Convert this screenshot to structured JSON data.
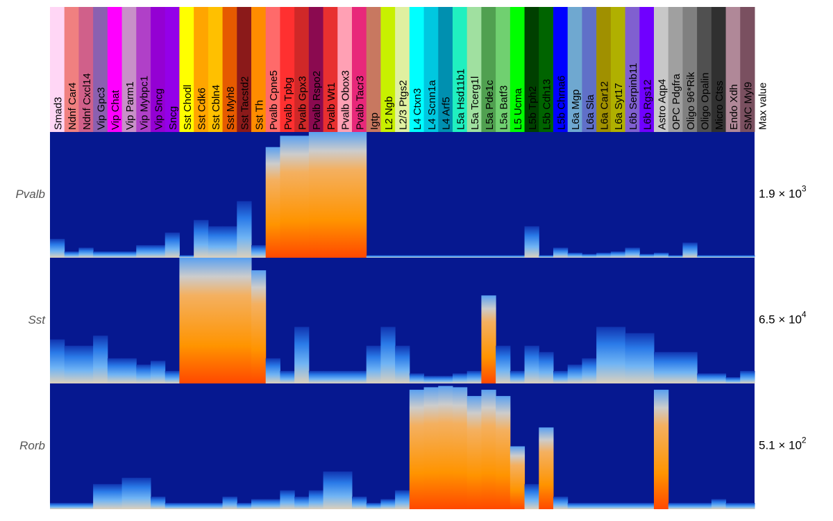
{
  "chart_data": {
    "type": "heatmap",
    "max_value_header": "Max value",
    "columns": [
      {
        "name": "Smad3",
        "color": "#ffd6f5"
      },
      {
        "name": "Ndnf Car4",
        "color": "#f08080"
      },
      {
        "name": "Ndnf Cxcl14",
        "color": "#d0608a"
      },
      {
        "name": "Vip Gpc3",
        "color": "#8b60b0"
      },
      {
        "name": "Vip Chat",
        "color": "#ff00ff"
      },
      {
        "name": "Vip Parm1",
        "color": "#c890c8"
      },
      {
        "name": "Vip Mybpc1",
        "color": "#b040c8"
      },
      {
        "name": "Vip Sncg",
        "color": "#9400d3"
      },
      {
        "name": "Sncg",
        "color": "#9400e8"
      },
      {
        "name": "Sst Chodl",
        "color": "#ffff00"
      },
      {
        "name": "Sst Cdk6",
        "color": "#ffa500"
      },
      {
        "name": "Sst Cbln4",
        "color": "#ffc000"
      },
      {
        "name": "Sst Myh8",
        "color": "#e65a00"
      },
      {
        "name": "Sst Tacstd2",
        "color": "#8b1a1a"
      },
      {
        "name": "Sst Th",
        "color": "#ff8c00"
      },
      {
        "name": "Pvalb Cpne5",
        "color": "#ff6a6a"
      },
      {
        "name": "Pvalb Tpbg",
        "color": "#ff3030"
      },
      {
        "name": "Pvalb Gpx3",
        "color": "#d02828"
      },
      {
        "name": "Pvalb Rspo2",
        "color": "#8b0a50"
      },
      {
        "name": "Pvalb Wt1",
        "color": "#e83030"
      },
      {
        "name": "Pvalb Obox3",
        "color": "#ffa0b4"
      },
      {
        "name": "Pvalb Tacr3",
        "color": "#e8287a"
      },
      {
        "name": "Igtp",
        "color": "#c87860"
      },
      {
        "name": "L2 Ngb",
        "color": "#c8f000"
      },
      {
        "name": "L2/3 Ptgs2",
        "color": "#e0f0a0"
      },
      {
        "name": "L4 Ctxn3",
        "color": "#00ffff"
      },
      {
        "name": "L4 Scnn1a",
        "color": "#00c8e0"
      },
      {
        "name": "L4 Arf5",
        "color": "#0090b0"
      },
      {
        "name": "L5a Hsd11b1",
        "color": "#20f0c0"
      },
      {
        "name": "L5a Tcerg1l",
        "color": "#a0e0a0"
      },
      {
        "name": "L5a Pde1c",
        "color": "#50a050"
      },
      {
        "name": "L5a Batf3",
        "color": "#70d070"
      },
      {
        "name": "L5 Ucma",
        "color": "#00ff00"
      },
      {
        "name": "L5b Tph2",
        "color": "#004000"
      },
      {
        "name": "L5b Cdh13",
        "color": "#006400"
      },
      {
        "name": "L5b Chrna6",
        "color": "#0000ff"
      },
      {
        "name": "L6a Mgp",
        "color": "#6fa8d0"
      },
      {
        "name": "L6a Sla",
        "color": "#6070c8"
      },
      {
        "name": "L6a Car12",
        "color": "#a09000"
      },
      {
        "name": "L6a Syt17",
        "color": "#b0b000"
      },
      {
        "name": "L6b Serpinb11",
        "color": "#8060d0"
      },
      {
        "name": "L6b Rgs12",
        "color": "#7000ff"
      },
      {
        "name": "Astro Aqp4",
        "color": "#c8c8c8"
      },
      {
        "name": "OPC Pdgfra",
        "color": "#a0a0a0"
      },
      {
        "name": "Oligo 96*Rik",
        "color": "#808080"
      },
      {
        "name": "Oligo Opalin",
        "color": "#505050"
      },
      {
        "name": "Micro Ctss",
        "color": "#303030"
      },
      {
        "name": "Endo Xdh",
        "color": "#b08898"
      },
      {
        "name": "SMC Myl9",
        "color": "#7a5060"
      }
    ],
    "rows": [
      {
        "gene": "Pvalb",
        "max_label": {
          "text": "1.9 × 10",
          "exponent": "3"
        },
        "values": [
          0.15,
          0.05,
          0.08,
          0.05,
          0.05,
          0.05,
          0.1,
          0.1,
          0.2,
          0.02,
          0.3,
          0.25,
          0.25,
          0.45,
          0.1,
          0.88,
          0.97,
          0.97,
          1,
          1,
          1,
          1,
          0.02,
          0.02,
          0.02,
          0.02,
          0.02,
          0.02,
          0.02,
          0.02,
          0.02,
          0.02,
          0.02,
          0.25,
          0.02,
          0.08,
          0.04,
          0.03,
          0.04,
          0.05,
          0.08,
          0.03,
          0.04,
          0.02,
          0.12,
          0.02,
          0.02,
          0.02,
          0.02
        ]
      },
      {
        "gene": "Sst",
        "max_label": {
          "text": "6.5 × 10",
          "exponent": "4"
        },
        "values": [
          0.35,
          0.3,
          0.3,
          0.38,
          0.2,
          0.2,
          0.15,
          0.18,
          0.1,
          1,
          1,
          1,
          1,
          1,
          0.9,
          0.2,
          0.1,
          0.45,
          0.1,
          0.1,
          0.1,
          0.1,
          0.3,
          0.45,
          0.3,
          0.08,
          0.06,
          0.06,
          0.08,
          0.1,
          0.7,
          0.3,
          0.1,
          0.3,
          0.25,
          0.1,
          0.15,
          0.2,
          0.45,
          0.45,
          0.4,
          0.4,
          0.25,
          0.25,
          0.25,
          0.08,
          0.08,
          0.05,
          0.1
        ]
      },
      {
        "gene": "Rorb",
        "max_label": {
          "text": "5.1 × 10",
          "exponent": "2"
        },
        "values": [
          0.05,
          0.05,
          0.05,
          0.2,
          0.2,
          0.25,
          0.25,
          0.1,
          0.05,
          0.05,
          0.05,
          0.05,
          0.1,
          0.05,
          0.08,
          0.08,
          0.15,
          0.1,
          0.15,
          0.3,
          0.3,
          0.1,
          0.05,
          0.08,
          0.15,
          0.95,
          0.97,
          0.98,
          0.97,
          0.9,
          0.95,
          0.9,
          0.5,
          0.2,
          0.65,
          0.1,
          0.05,
          0.05,
          0.05,
          0.05,
          0.05,
          0.05,
          0.95,
          0.05,
          0.05,
          0.05,
          0.08,
          0.05,
          0.05
        ]
      }
    ]
  }
}
